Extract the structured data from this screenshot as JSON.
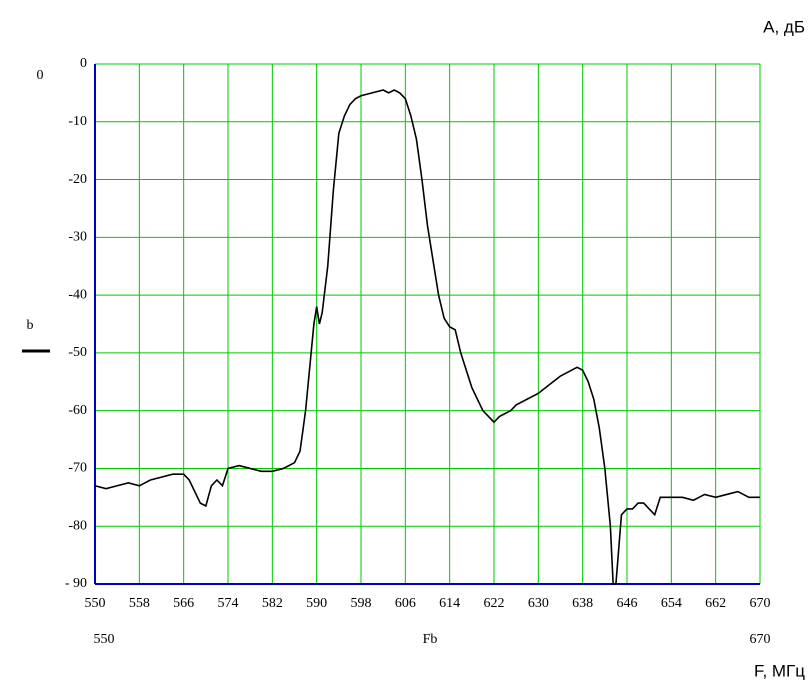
{
  "chart_data": {
    "type": "line",
    "y_unit_label": "А, дБ",
    "x_unit_label": "F, МГц",
    "corner_label": "0",
    "bottom_labels": [
      "550",
      "Fb",
      "670"
    ],
    "x": [
      550,
      552,
      554,
      556,
      558,
      560,
      562,
      564,
      566,
      567,
      568,
      569,
      570,
      571,
      572,
      573,
      574,
      576,
      578,
      580,
      582,
      584,
      586,
      587,
      588,
      589,
      589.5,
      590,
      590.5,
      591,
      592,
      593,
      594,
      595,
      596,
      597,
      598,
      600,
      602,
      603,
      604,
      605,
      606,
      607,
      608,
      609,
      610,
      611,
      612,
      613,
      614,
      615,
      616,
      617,
      618,
      619,
      620,
      621,
      622,
      623,
      624,
      625,
      626,
      628,
      630,
      632,
      634,
      636,
      637,
      638,
      639,
      640,
      641,
      642,
      643,
      643.5,
      644,
      644.5,
      645,
      646,
      647,
      648,
      649,
      650,
      651,
      652,
      654,
      656,
      658,
      660,
      662,
      664,
      666,
      668,
      670
    ],
    "series": [
      {
        "name": "b",
        "color": "#000000",
        "values": [
          -73,
          -73.5,
          -73,
          -72.5,
          -73,
          -72,
          -71.5,
          -71,
          -71,
          -72,
          -74,
          -76,
          -76.5,
          -73,
          -72,
          -73,
          -70,
          -69.5,
          -70,
          -70.5,
          -70.5,
          -70,
          -69,
          -67,
          -60,
          -50,
          -45,
          -42,
          -45,
          -43,
          -35,
          -22,
          -12,
          -9,
          -7,
          -6,
          -5.5,
          -5,
          -4.5,
          -5,
          -4.5,
          -5,
          -6,
          -9,
          -13,
          -20,
          -28,
          -34,
          -40,
          -44,
          -45.5,
          -46,
          -50,
          -53,
          -56,
          -58,
          -60,
          -61,
          -62,
          -61,
          -60.5,
          -60,
          -59,
          -58,
          -57,
          -55.5,
          -54,
          -53,
          -52.5,
          -53,
          -55,
          -58,
          -63,
          -70,
          -80,
          -90,
          -90,
          -84,
          -78,
          -77,
          -77,
          -76,
          -76,
          -77,
          -78,
          -75,
          -75,
          -75,
          -75.5,
          -74.5,
          -75,
          -74.5,
          -74,
          -75,
          -75
        ]
      }
    ],
    "xlim": [
      550,
      670
    ],
    "xticks": [
      550,
      558,
      566,
      574,
      582,
      590,
      598,
      606,
      614,
      622,
      630,
      638,
      646,
      654,
      662,
      670
    ],
    "ylim": [
      -90,
      0
    ],
    "yticks": [
      0,
      -10,
      -20,
      -30,
      -40,
      -50,
      -60,
      -70,
      -80,
      {
        "value": -90,
        "label": "- 90"
      }
    ],
    "grid": true,
    "grid_color": "#00c800"
  }
}
